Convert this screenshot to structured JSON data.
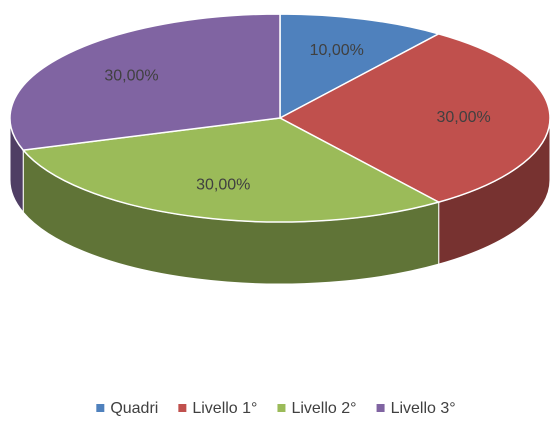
{
  "chart_data": {
    "type": "pie",
    "categories": [
      "Quadri",
      "Livello 1°",
      "Livello 2°",
      "Livello 3°"
    ],
    "values": [
      10,
      30,
      30,
      30
    ],
    "value_labels": [
      "10,00%",
      "30,00%",
      "30,00%",
      "30,00%"
    ],
    "colors": [
      "#4f81bd",
      "#c0504d",
      "#9bbb59",
      "#8064a2"
    ],
    "legend": "bottom"
  }
}
